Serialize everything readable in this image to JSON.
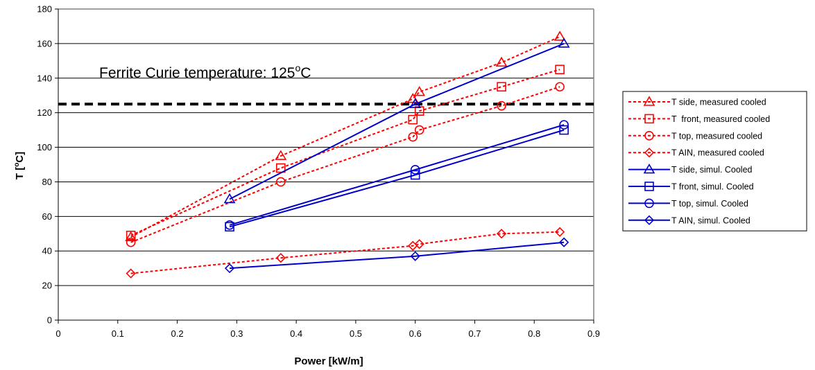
{
  "chart_data": {
    "type": "line",
    "title": "",
    "xlabel": "Power [kW/m]",
    "ylabel_main": "T [",
    "ylabel_sup": "o",
    "ylabel_tail": "C]",
    "xlim": [
      0,
      0.9
    ],
    "ylim": [
      0,
      180
    ],
    "x_ticks": [
      0,
      0.1,
      0.2,
      0.3,
      0.4,
      0.5,
      0.6,
      0.7,
      0.8,
      0.9
    ],
    "x_tick_labels": [
      "0",
      "0.1",
      "0.2",
      "0.3",
      "0.4",
      "0.5",
      "0.6",
      "0.7",
      "0.8",
      "0.9"
    ],
    "y_ticks": [
      0,
      20,
      40,
      60,
      80,
      100,
      120,
      140,
      160,
      180
    ],
    "y_tick_labels": [
      "0",
      "20",
      "40",
      "60",
      "80",
      "100",
      "120",
      "140",
      "160",
      "180"
    ],
    "grid": "horizontal",
    "legend_position": "right",
    "reference_line": {
      "y": 125,
      "label_main": "Ferrite Curie temperature: 125",
      "label_sup": "o",
      "label_tail": "C",
      "color": "#000000"
    },
    "series": [
      {
        "name": "T side, measured cooled",
        "style": "dotted",
        "marker": "triangle",
        "color": "#ff0000",
        "x": [
          0.122,
          0.374,
          0.596,
          0.607,
          0.745,
          0.843
        ],
        "y": [
          48,
          95,
          128,
          132,
          149,
          164
        ]
      },
      {
        "name": "T  front, measured cooled",
        "style": "dotted",
        "marker": "square",
        "color": "#ff0000",
        "x": [
          0.122,
          0.374,
          0.596,
          0.607,
          0.745,
          0.843
        ],
        "y": [
          49,
          88,
          116,
          121,
          135,
          145
        ]
      },
      {
        "name": "T top, measured cooled",
        "style": "dotted",
        "marker": "circle",
        "color": "#ff0000",
        "x": [
          0.122,
          0.374,
          0.596,
          0.607,
          0.745,
          0.843
        ],
        "y": [
          45,
          80,
          106,
          110,
          124,
          135
        ]
      },
      {
        "name": "T AIN, measured cooled",
        "style": "dotted",
        "marker": "diamond",
        "color": "#ff0000",
        "x": [
          0.122,
          0.374,
          0.596,
          0.607,
          0.745,
          0.843
        ],
        "y": [
          27,
          36,
          43,
          44,
          50,
          51
        ]
      },
      {
        "name": "T side, simul. Cooled",
        "style": "solid",
        "marker": "triangle",
        "color": "#0000cc",
        "x": [
          0.288,
          0.6,
          0.85
        ],
        "y": [
          70,
          125,
          160
        ]
      },
      {
        "name": "T front, simul. Cooled",
        "style": "solid",
        "marker": "square",
        "color": "#0000cc",
        "x": [
          0.288,
          0.6,
          0.85
        ],
        "y": [
          54,
          84,
          110
        ]
      },
      {
        "name": "T top, simul. Cooled",
        "style": "solid",
        "marker": "circle",
        "color": "#0000cc",
        "x": [
          0.288,
          0.6,
          0.85
        ],
        "y": [
          55,
          87,
          113
        ]
      },
      {
        "name": "T AIN, simul. Cooled",
        "style": "solid",
        "marker": "diamond",
        "color": "#0000cc",
        "x": [
          0.288,
          0.6,
          0.85
        ],
        "y": [
          30,
          37,
          45
        ]
      }
    ]
  }
}
